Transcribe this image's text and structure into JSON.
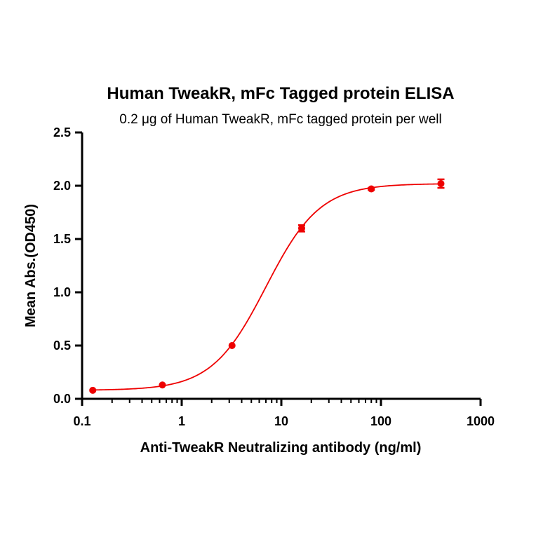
{
  "chart_data": {
    "type": "scatter",
    "title": "Human TweakR,  mFc Tagged protein ELISA",
    "subtitle": "0.2 μg of Human TweakR, mFc tagged protein per well",
    "xlabel": "Anti-TweakR Neutralizing antibody (ng/ml)",
    "ylabel": "Mean Abs.(OD450)",
    "xscale": "log",
    "xlim": [
      0.1,
      1000
    ],
    "ylim": [
      0,
      2.5
    ],
    "x_ticks": [
      0.1,
      1,
      10,
      100,
      1000
    ],
    "x_tick_labels": [
      "0.1",
      "1",
      "10",
      "100",
      "1000"
    ],
    "y_ticks": [
      0,
      0.5,
      1,
      1.5,
      2,
      2.5
    ],
    "y_tick_labels": [
      "0.0",
      "0.5",
      "1.0",
      "1.5",
      "2.0",
      "2.5"
    ],
    "grid": false,
    "color": "#ee0000",
    "series": [
      {
        "x": [
          0.128,
          0.64,
          3.2,
          16,
          80,
          400
        ],
        "y": [
          0.08,
          0.13,
          0.5,
          1.6,
          1.97,
          2.02
        ],
        "error": [
          0.0,
          0.0,
          0.0,
          0.03,
          0.01,
          0.04
        ],
        "fit": "4PL",
        "fit_params": {
          "bottom": 0.08,
          "top": 2.02,
          "ec50": 7.0,
          "hill": 1.6
        }
      }
    ]
  }
}
